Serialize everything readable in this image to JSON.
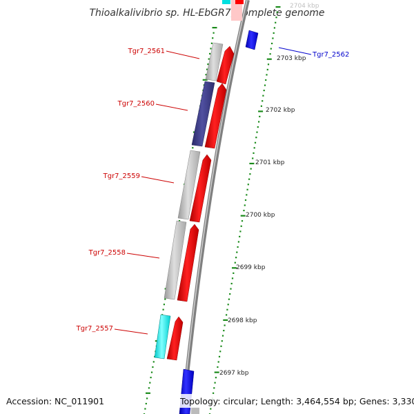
{
  "title": "Thioalkalivibrio sp. HL-EbGR7, complete genome",
  "footer": {
    "accession": "Accession: NC_011901",
    "topology": "Topology: circular; Length: 3,464,554 bp; Genes: 3,330"
  },
  "ticks": [
    "2704 kbp",
    "2703 kbp",
    "2702 kbp",
    "2701 kbp",
    "2700 kbp",
    "2699 kbp",
    "2698 kbp",
    "2697 kbp"
  ],
  "gene_labels": [
    "Tgr7_2561",
    "Tgr7_2560",
    "Tgr7_2559",
    "Tgr7_2558",
    "Tgr7_2557",
    "Tgr7_2562"
  ],
  "colors": {
    "red": "#ff0000",
    "gray": "#c8c8c8",
    "purple": "#3f3f8f",
    "cyan": "#00ffff",
    "blue": "#0000ff",
    "pink": "#ffc0c0",
    "label_red": "#cc0000",
    "label_blue": "#0000cc",
    "tick_green": "#1a8a1a",
    "backbone": "#808080"
  }
}
